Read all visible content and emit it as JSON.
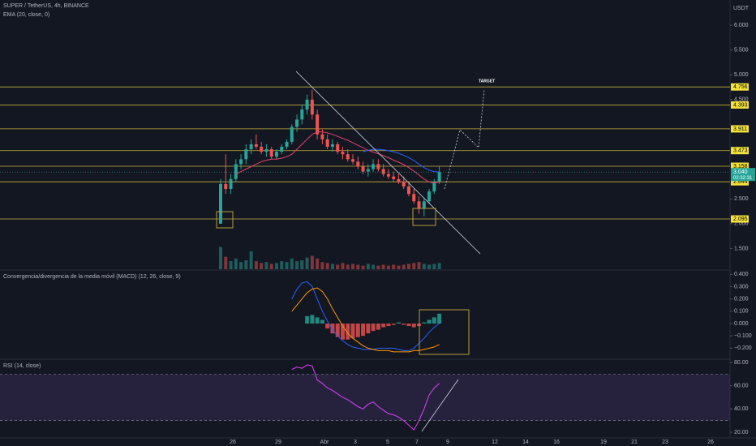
{
  "header": {
    "symbol": "SUPER / TetherUS, 4h, BINANCE",
    "indicator": "EMA (20, close, 0)"
  },
  "price_pane": {
    "currency": "USDT",
    "ylim": [
      1.066,
      6.508
    ],
    "yticks": [
      {
        "value": 6,
        "label": "6.000"
      },
      {
        "value": 5.5,
        "label": "5.500"
      },
      {
        "value": 5,
        "label": "5.000"
      },
      {
        "value": 4.5,
        "label": "4.500"
      },
      {
        "value": 2.5,
        "label": "2.500"
      },
      {
        "value": 2,
        "label": "2.000"
      },
      {
        "value": 1.5,
        "label": "1.500"
      }
    ],
    "levels": [
      {
        "value": 4.756,
        "label": "4.756"
      },
      {
        "value": 4.393,
        "label": "4.393"
      },
      {
        "value": 3.911,
        "label": "3.911"
      },
      {
        "value": 3.473,
        "label": "3.473"
      },
      {
        "value": 3.158,
        "label": "3.158"
      },
      {
        "value": 2.844,
        "label": "2.844"
      },
      {
        "value": 2.095,
        "label": "2.095"
      }
    ],
    "last_price": {
      "value": 3.04,
      "label": "3.040"
    },
    "countdown": "02:32:31",
    "target_label": "TARGET",
    "candles": {
      "open": [
        2.0,
        2.8,
        2.7,
        2.9,
        3.2,
        3.3,
        3.5,
        3.6,
        3.55,
        3.45,
        3.5,
        3.35,
        3.45,
        3.55,
        3.65,
        3.95,
        4.1,
        4.3,
        4.5,
        4.2,
        3.8,
        3.7,
        3.55,
        3.6,
        3.45,
        3.4,
        3.3,
        3.25,
        3.15,
        3.05,
        3.1,
        3.2,
        3.1,
        3.0,
        2.95,
        2.9,
        2.85,
        2.75,
        2.6,
        2.45,
        2.3,
        2.45,
        2.65,
        2.85
      ],
      "high": [
        2.9,
        3.4,
        3.0,
        3.3,
        3.4,
        3.6,
        3.7,
        3.8,
        3.65,
        3.6,
        3.55,
        3.5,
        3.6,
        3.7,
        4.0,
        4.2,
        4.4,
        4.6,
        4.7,
        4.3,
        3.9,
        3.8,
        3.7,
        3.65,
        3.55,
        3.5,
        3.4,
        3.35,
        3.25,
        3.2,
        3.3,
        3.3,
        3.2,
        3.1,
        3.05,
        3.0,
        2.95,
        2.85,
        2.7,
        2.55,
        2.5,
        2.7,
        2.9,
        3.15
      ],
      "low": [
        2.0,
        2.6,
        2.6,
        2.85,
        3.1,
        3.2,
        3.4,
        3.5,
        3.4,
        3.35,
        3.3,
        3.3,
        3.4,
        3.5,
        3.6,
        3.85,
        4.0,
        4.2,
        4.1,
        3.7,
        3.6,
        3.5,
        3.45,
        3.4,
        3.3,
        3.25,
        3.2,
        3.1,
        3.0,
        2.95,
        3.05,
        3.05,
        2.95,
        2.9,
        2.85,
        2.8,
        2.7,
        2.55,
        2.4,
        2.2,
        2.15,
        2.4,
        2.6,
        2.8
      ],
      "close": [
        2.8,
        2.7,
        2.9,
        3.2,
        3.3,
        3.5,
        3.6,
        3.55,
        3.45,
        3.5,
        3.35,
        3.45,
        3.55,
        3.65,
        3.95,
        4.1,
        4.3,
        4.5,
        4.2,
        3.8,
        3.7,
        3.55,
        3.6,
        3.45,
        3.4,
        3.3,
        3.25,
        3.15,
        3.05,
        3.1,
        3.2,
        3.1,
        3.0,
        2.95,
        2.9,
        2.85,
        2.75,
        2.6,
        2.45,
        2.3,
        2.45,
        2.65,
        2.85,
        3.04
      ]
    },
    "volume": [
      25,
      14,
      9,
      12,
      8,
      10,
      20,
      9,
      7,
      8,
      6,
      7,
      9,
      8,
      12,
      9,
      10,
      13,
      15,
      12,
      8,
      7,
      6,
      5,
      7,
      5,
      6,
      5,
      4,
      6,
      5,
      4,
      5,
      4,
      5,
      4,
      5,
      6,
      7,
      8,
      6,
      5,
      6,
      7
    ],
    "ema": [
      null,
      null,
      null,
      3.0,
      3.05,
      3.1,
      3.15,
      3.2,
      3.25,
      3.28,
      3.3,
      3.3,
      3.32,
      3.35,
      3.4,
      3.5,
      3.6,
      3.7,
      3.8,
      3.85,
      3.85,
      3.83,
      3.8,
      3.76,
      3.72,
      3.68,
      3.63,
      3.58,
      3.53,
      3.48,
      3.44,
      3.41,
      3.37,
      3.33,
      3.28,
      3.24,
      3.19,
      3.13,
      3.06,
      2.98,
      2.9,
      2.84,
      2.82,
      2.84
    ],
    "ma": [
      null,
      null,
      null,
      null,
      null,
      null,
      null,
      null,
      null,
      null,
      null,
      null,
      null,
      null,
      null,
      null,
      null,
      null,
      null,
      null,
      null,
      null,
      null,
      null,
      null,
      null,
      null,
      null,
      3.45,
      3.48,
      3.5,
      3.5,
      3.49,
      3.47,
      3.45,
      3.42,
      3.38,
      3.33,
      3.27,
      3.2,
      3.13,
      3.08,
      3.05,
      3.04
    ]
  },
  "macd_pane": {
    "title": "Convergencia/divergencia de la media móvil (MACD) (12, 26, close, 9)",
    "ylim": [
      -0.283,
      0.428
    ],
    "yticks": [
      {
        "value": 0.4,
        "label": "0.400"
      },
      {
        "value": 0.3,
        "label": "0.300"
      },
      {
        "value": 0.2,
        "label": "0.200"
      },
      {
        "value": 0.1,
        "label": "0.100"
      },
      {
        "value": 0,
        "label": "0.000"
      },
      {
        "value": -0.1,
        "label": "−0.100"
      },
      {
        "value": -0.2,
        "label": "−0.200"
      }
    ],
    "histogram": [
      null,
      null,
      null,
      null,
      null,
      null,
      null,
      null,
      null,
      null,
      null,
      null,
      null,
      null,
      null,
      null,
      null,
      0.06,
      0.07,
      0.05,
      0.03,
      -0.04,
      -0.08,
      -0.11,
      -0.13,
      -0.13,
      -0.12,
      -0.11,
      -0.1,
      -0.08,
      -0.06,
      -0.05,
      -0.03,
      -0.02,
      -0.01,
      0.01,
      -0.01,
      -0.02,
      -0.03,
      -0.02,
      0.01,
      0.03,
      0.05,
      0.08
    ],
    "macd": [
      null,
      null,
      null,
      null,
      null,
      null,
      null,
      null,
      null,
      null,
      null,
      null,
      null,
      null,
      0.2,
      0.28,
      0.33,
      0.34,
      0.3,
      0.2,
      0.1,
      0.02,
      -0.05,
      -0.1,
      -0.14,
      -0.17,
      -0.19,
      -0.2,
      -0.21,
      -0.21,
      -0.21,
      -0.2,
      -0.2,
      -0.2,
      -0.2,
      -0.21,
      -0.22,
      -0.22,
      -0.2,
      -0.16,
      -0.12,
      -0.07,
      -0.03,
      0.0
    ],
    "signal": [
      null,
      null,
      null,
      null,
      null,
      null,
      null,
      null,
      null,
      null,
      null,
      null,
      null,
      null,
      0.1,
      0.15,
      0.2,
      0.25,
      0.28,
      0.29,
      0.26,
      0.2,
      0.12,
      0.05,
      -0.02,
      -0.08,
      -0.12,
      -0.15,
      -0.18,
      -0.2,
      -0.21,
      -0.22,
      -0.22,
      -0.22,
      -0.23,
      -0.23,
      -0.23,
      -0.23,
      -0.22,
      -0.22,
      -0.21,
      -0.2,
      -0.19,
      -0.17
    ]
  },
  "rsi_pane": {
    "title": "RSI (14, close)",
    "ylim": [
      15.1,
      82.1
    ],
    "yticks": [
      {
        "value": 80,
        "label": "80.00"
      },
      {
        "value": 60,
        "label": "60.00"
      },
      {
        "value": 40,
        "label": "40.00"
      },
      {
        "value": 20,
        "label": "20.00"
      }
    ],
    "upper": 70,
    "lower": 30,
    "values": [
      null,
      null,
      null,
      null,
      null,
      null,
      null,
      null,
      null,
      null,
      null,
      null,
      null,
      null,
      74,
      76,
      75,
      78,
      77,
      65,
      62,
      58,
      56,
      53,
      50,
      48,
      45,
      42,
      40,
      44,
      46,
      42,
      39,
      36,
      35,
      33,
      30,
      26,
      22,
      30,
      40,
      52,
      58,
      62
    ]
  },
  "time_axis": [
    "26",
    "29",
    "Abr",
    "3",
    "5",
    "7",
    "9",
    "12",
    "14",
    "16",
    "19",
    "21",
    "23",
    "26"
  ]
}
